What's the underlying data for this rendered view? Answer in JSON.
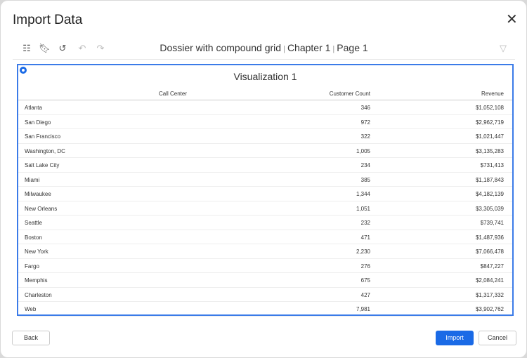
{
  "dialog": {
    "title": "Import Data",
    "close_icon": "close-icon"
  },
  "toolbar": {
    "icons": [
      "table-of-contents-icon",
      "bookmark-icon",
      "history-icon",
      "undo-icon",
      "redo-icon",
      "filter-icon"
    ],
    "dossier": "Dossier with compound grid",
    "chapter": "Chapter 1",
    "page": "Page 1",
    "separator": "|"
  },
  "visualization": {
    "title": "Visualization 1",
    "accent": "#1a6ae6",
    "columns": [
      "Call Center",
      "Customer Count",
      "Revenue"
    ],
    "rows": [
      [
        "Atlanta",
        "346",
        "$1,052,108"
      ],
      [
        "San Diego",
        "972",
        "$2,962,719"
      ],
      [
        "San Francisco",
        "322",
        "$1,021,447"
      ],
      [
        "Washington, DC",
        "1,005",
        "$3,135,283"
      ],
      [
        "Salt Lake City",
        "234",
        "$731,413"
      ],
      [
        "Miami",
        "385",
        "$1,187,843"
      ],
      [
        "Milwaukee",
        "1,344",
        "$4,182,139"
      ],
      [
        "New Orleans",
        "1,051",
        "$3,305,039"
      ],
      [
        "Seattle",
        "232",
        "$739,741"
      ],
      [
        "Boston",
        "471",
        "$1,487,936"
      ],
      [
        "New York",
        "2,230",
        "$7,066,478"
      ],
      [
        "Fargo",
        "276",
        "$847,227"
      ],
      [
        "Memphis",
        "675",
        "$2,084,241"
      ],
      [
        "Charleston",
        "427",
        "$1,317,332"
      ],
      [
        "Web",
        "7,981",
        "$3,902,762"
      ]
    ]
  },
  "footer": {
    "back": "Back",
    "import": "Import",
    "cancel": "Cancel"
  }
}
